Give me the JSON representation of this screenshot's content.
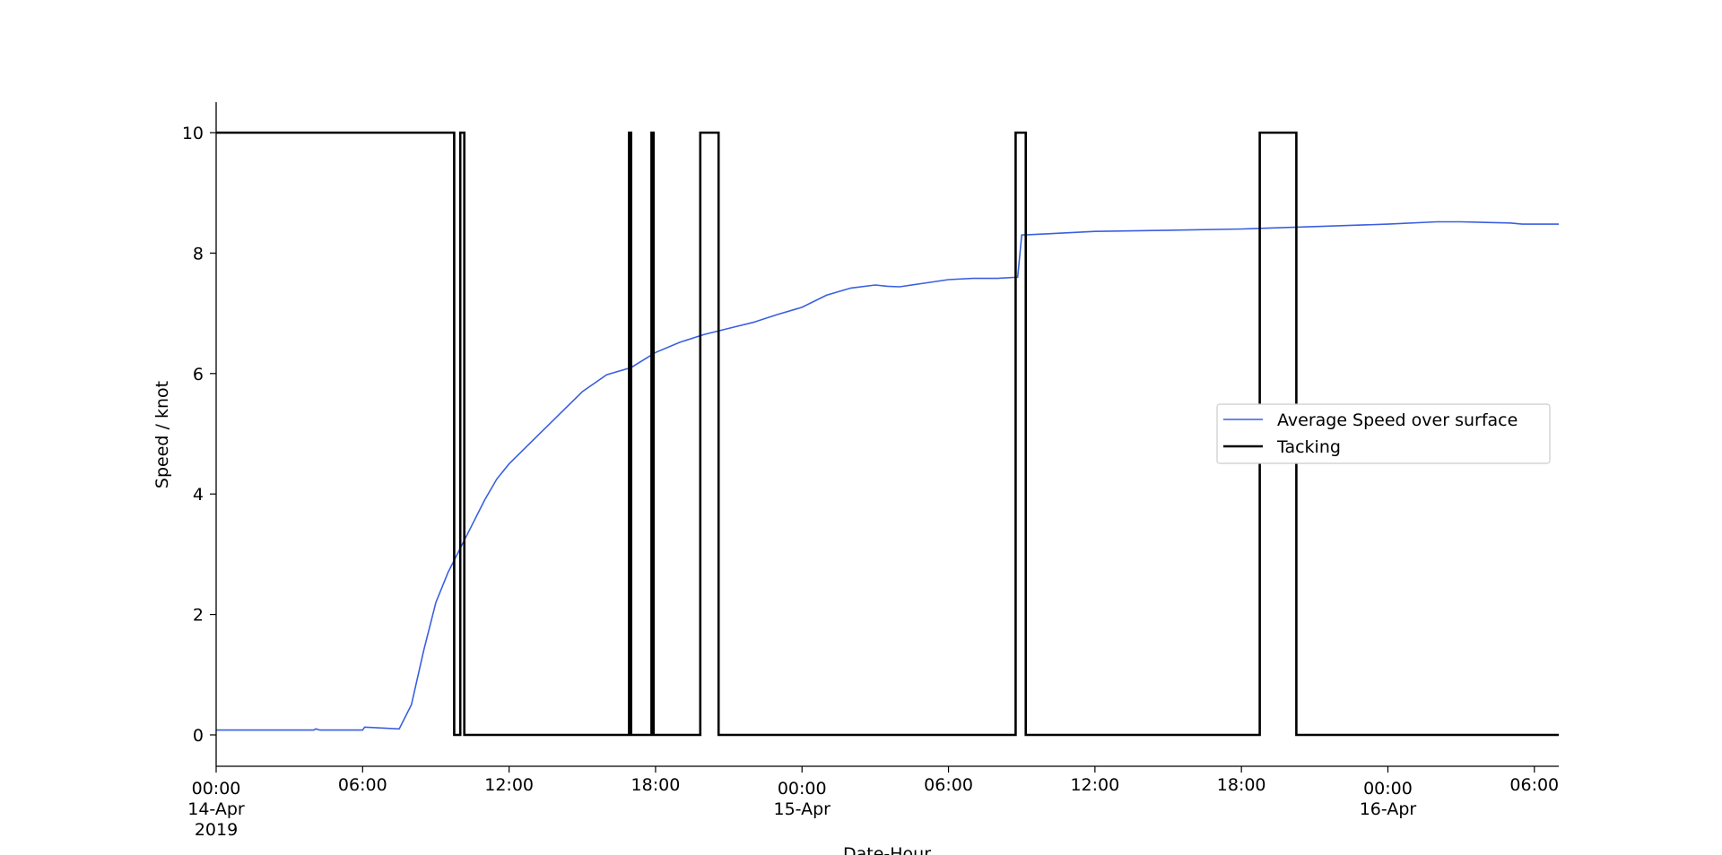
{
  "chart_data": {
    "type": "line",
    "xlabel": "Date-Hour",
    "ylabel": "Speed / knot",
    "x_range": [
      "2019-04-14T00:00",
      "2019-04-16T07:00"
    ],
    "ylim": [
      -0.5,
      10.5
    ],
    "grid": false,
    "legend_position": "center-right",
    "y_ticks": [
      0,
      2,
      4,
      6,
      8,
      10
    ],
    "x_ticks": [
      {
        "x": "2019-04-14T00:00",
        "label": [
          "00:00",
          "14-Apr",
          "2019"
        ]
      },
      {
        "x": "2019-04-14T06:00",
        "label": [
          "06:00"
        ]
      },
      {
        "x": "2019-04-14T12:00",
        "label": [
          "12:00"
        ]
      },
      {
        "x": "2019-04-14T18:00",
        "label": [
          "18:00"
        ]
      },
      {
        "x": "2019-04-15T00:00",
        "label": [
          "00:00",
          "15-Apr"
        ]
      },
      {
        "x": "2019-04-15T06:00",
        "label": [
          "06:00"
        ]
      },
      {
        "x": "2019-04-15T12:00",
        "label": [
          "12:00"
        ]
      },
      {
        "x": "2019-04-15T18:00",
        "label": [
          "18:00"
        ]
      },
      {
        "x": "2019-04-16T00:00",
        "label": [
          "00:00",
          "16-Apr"
        ]
      },
      {
        "x": "2019-04-16T06:00",
        "label": [
          "06:00"
        ]
      }
    ],
    "series": [
      {
        "name": "Average Speed over surface",
        "color": "#3a5fe0",
        "points": [
          [
            "2019-04-14T00:00",
            0.08
          ],
          [
            "2019-04-14T04:00",
            0.08
          ],
          [
            "2019-04-14T04:05",
            0.1
          ],
          [
            "2019-04-14T04:15",
            0.08
          ],
          [
            "2019-04-14T06:00",
            0.08
          ],
          [
            "2019-04-14T06:05",
            0.13
          ],
          [
            "2019-04-14T07:30",
            0.1
          ],
          [
            "2019-04-14T08:00",
            0.5
          ],
          [
            "2019-04-14T08:30",
            1.4
          ],
          [
            "2019-04-14T09:00",
            2.2
          ],
          [
            "2019-04-14T09:30",
            2.7
          ],
          [
            "2019-04-14T10:00",
            3.1
          ],
          [
            "2019-04-14T10:30",
            3.5
          ],
          [
            "2019-04-14T11:00",
            3.9
          ],
          [
            "2019-04-14T11:30",
            4.25
          ],
          [
            "2019-04-14T12:00",
            4.5
          ],
          [
            "2019-04-14T13:00",
            4.9
          ],
          [
            "2019-04-14T14:00",
            5.3
          ],
          [
            "2019-04-14T15:00",
            5.7
          ],
          [
            "2019-04-14T16:00",
            5.98
          ],
          [
            "2019-04-14T17:00",
            6.1
          ],
          [
            "2019-04-14T18:00",
            6.35
          ],
          [
            "2019-04-14T19:00",
            6.52
          ],
          [
            "2019-04-14T20:00",
            6.65
          ],
          [
            "2019-04-14T21:00",
            6.75
          ],
          [
            "2019-04-14T22:00",
            6.85
          ],
          [
            "2019-04-14T23:00",
            6.98
          ],
          [
            "2019-04-15T00:00",
            7.1
          ],
          [
            "2019-04-15T01:00",
            7.3
          ],
          [
            "2019-04-15T02:00",
            7.42
          ],
          [
            "2019-04-15T03:00",
            7.47
          ],
          [
            "2019-04-15T03:30",
            7.45
          ],
          [
            "2019-04-15T04:00",
            7.44
          ],
          [
            "2019-04-15T05:00",
            7.5
          ],
          [
            "2019-04-15T06:00",
            7.56
          ],
          [
            "2019-04-15T07:00",
            7.58
          ],
          [
            "2019-04-15T08:00",
            7.58
          ],
          [
            "2019-04-15T08:50",
            7.6
          ],
          [
            "2019-04-15T09:00",
            8.3
          ],
          [
            "2019-04-15T10:00",
            8.32
          ],
          [
            "2019-04-15T12:00",
            8.36
          ],
          [
            "2019-04-15T15:00",
            8.38
          ],
          [
            "2019-04-15T18:00",
            8.4
          ],
          [
            "2019-04-15T21:00",
            8.44
          ],
          [
            "2019-04-16T00:00",
            8.48
          ],
          [
            "2019-04-16T02:00",
            8.52
          ],
          [
            "2019-04-16T03:00",
            8.52
          ],
          [
            "2019-04-16T05:00",
            8.5
          ],
          [
            "2019-04-16T05:30",
            8.48
          ],
          [
            "2019-04-16T07:00",
            8.48
          ]
        ]
      },
      {
        "name": "Tacking",
        "color": "#000000",
        "points": [
          [
            "2019-04-14T00:00",
            10
          ],
          [
            "2019-04-14T09:45",
            10
          ],
          [
            "2019-04-14T09:45",
            0
          ],
          [
            "2019-04-14T10:00",
            0
          ],
          [
            "2019-04-14T10:00",
            10
          ],
          [
            "2019-04-14T10:10",
            10
          ],
          [
            "2019-04-14T10:10",
            0
          ],
          [
            "2019-04-14T16:55",
            0
          ],
          [
            "2019-04-14T16:55",
            10
          ],
          [
            "2019-04-14T17:00",
            10
          ],
          [
            "2019-04-14T17:00",
            0
          ],
          [
            "2019-04-14T17:50",
            0
          ],
          [
            "2019-04-14T17:50",
            10
          ],
          [
            "2019-04-14T17:55",
            10
          ],
          [
            "2019-04-14T17:55",
            0
          ],
          [
            "2019-04-14T19:50",
            0
          ],
          [
            "2019-04-14T19:50",
            10
          ],
          [
            "2019-04-14T20:35",
            10
          ],
          [
            "2019-04-14T20:35",
            0
          ],
          [
            "2019-04-15T08:45",
            0
          ],
          [
            "2019-04-15T08:45",
            10
          ],
          [
            "2019-04-15T09:10",
            10
          ],
          [
            "2019-04-15T09:10",
            0
          ],
          [
            "2019-04-15T18:45",
            0
          ],
          [
            "2019-04-15T18:45",
            10
          ],
          [
            "2019-04-15T20:15",
            10
          ],
          [
            "2019-04-15T20:15",
            0
          ],
          [
            "2019-04-16T07:00",
            0
          ]
        ]
      }
    ]
  }
}
